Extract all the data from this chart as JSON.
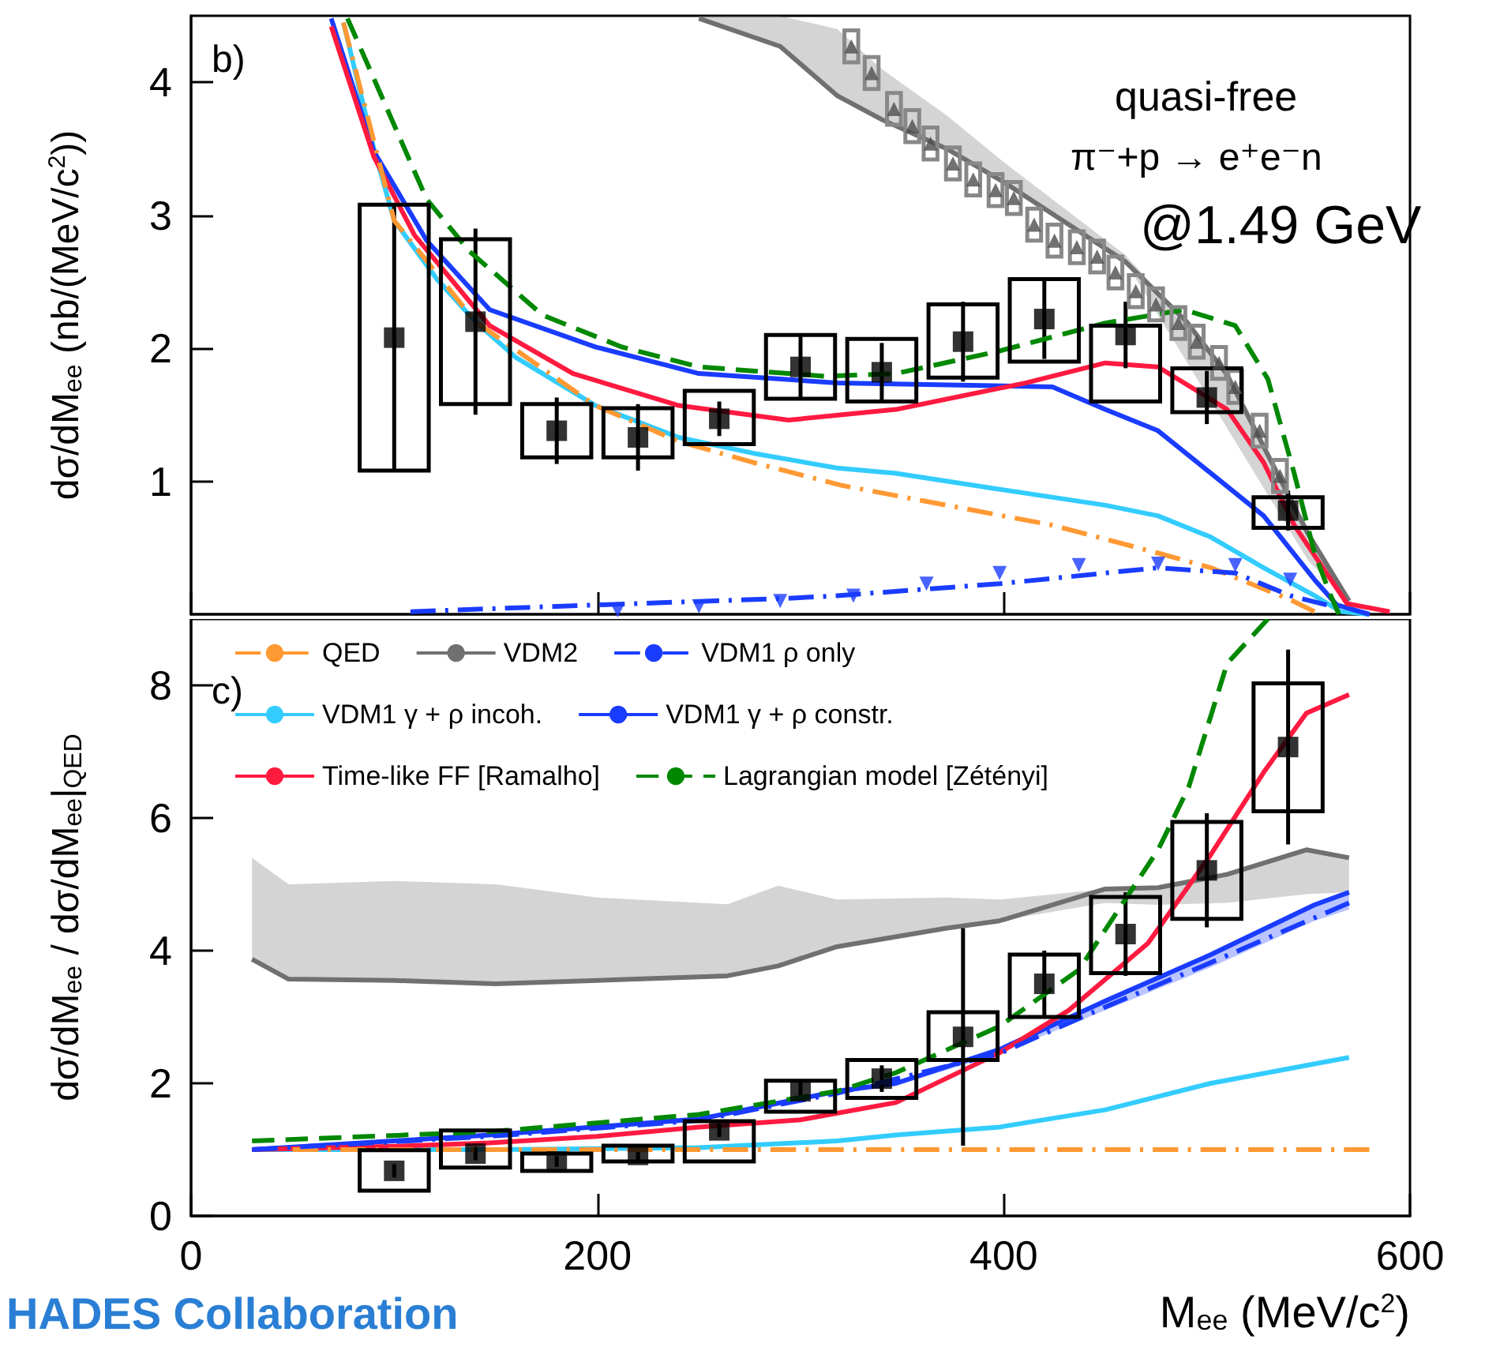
{
  "chart_data": [
    {
      "type": "line",
      "xlim": [
        0,
        600
      ],
      "xticks": [
        0,
        200,
        400,
        600
      ],
      "ylim": [
        0,
        4.5
      ],
      "yticks": [
        1,
        2,
        3,
        4
      ],
      "ylabel": "dσ/dM$_{ee}$ (nb/(MeV/c$^{2}$))",
      "tick_labels": "y",
      "grid": false,
      "legend": false,
      "annotations": [
        "b)",
        "quasi-free",
        "π⁻+p → e⁺e⁻n",
        "@1.49 GeV"
      ],
      "series": [
        {
          "color": "#707070",
          "line_style": "solid",
          "marker": "none",
          "x": [
            250,
            290,
            318,
            340,
            372,
            400,
            430,
            460,
            490,
            510,
            530,
            550,
            570
          ],
          "values": [
            4.48,
            4.27,
            3.9,
            3.72,
            3.5,
            3.25,
            2.95,
            2.65,
            2.2,
            1.8,
            1.2,
            0.6,
            0.1
          ],
          "lower": [
            4.48,
            4.27,
            3.9,
            3.72,
            3.5,
            3.25,
            2.95,
            2.65,
            1.9,
            1.4,
            0.9,
            0.4,
            0.1
          ],
          "upper": [
            4.5,
            4.5,
            4.4,
            4.1,
            3.75,
            3.4,
            3.05,
            2.7,
            2.2,
            1.8,
            1.2,
            0.6,
            0.1
          ]
        },
        {
          "color": "#ff9933",
          "line_style": "dashdot",
          "marker": "none",
          "x": [
            75,
            100,
            140,
            199,
            240,
            277,
            320,
            372,
            424,
            476,
            502,
            541,
            553
          ],
          "values": [
            4.45,
            2.96,
            2.2,
            1.57,
            1.3,
            1.14,
            0.97,
            0.82,
            0.67,
            0.46,
            0.35,
            0.11,
            0.02
          ]
        },
        {
          "color": "#1a3cff",
          "line_style": "dashdot",
          "marker": "none",
          "x": [
            108,
            199,
            294,
            318,
            398,
            476,
            514,
            541,
            559
          ],
          "values": [
            0.02,
            0.07,
            0.12,
            0.14,
            0.23,
            0.35,
            0.31,
            0.14,
            0.07
          ]
        },
        {
          "color": "#33ccff",
          "line_style": "solid",
          "marker": "none",
          "x": [
            75,
            90,
            100,
            121,
            140,
            160,
            199,
            240,
            277,
            318,
            347,
            398,
            450,
            476,
            502,
            528,
            553,
            566,
            580
          ],
          "values": [
            4.45,
            3.5,
            2.96,
            2.52,
            2.2,
            1.93,
            1.57,
            1.33,
            1.21,
            1.1,
            1.06,
            0.94,
            0.82,
            0.74,
            0.58,
            0.35,
            0.14,
            0.02,
            0
          ]
        },
        {
          "color": "#1a3cff",
          "line_style": "solid",
          "marker": "none",
          "x": [
            69,
            90,
            116,
            147,
            199,
            250,
            318,
            424,
            450,
            476,
            502,
            528,
            553,
            564,
            580
          ],
          "values": [
            4.48,
            3.48,
            2.81,
            2.29,
            2.01,
            1.81,
            1.74,
            1.71,
            1.54,
            1.38,
            1.06,
            0.74,
            0.26,
            0.07,
            0
          ]
        },
        {
          "color": "#ff1a40",
          "line_style": "solid",
          "marker": "none",
          "x": [
            69,
            90,
            110,
            147,
            188,
            240,
            294,
            347,
            411,
            450,
            476,
            510,
            528,
            543,
            569,
            590
          ],
          "values": [
            4.42,
            3.44,
            2.85,
            2.17,
            1.81,
            1.57,
            1.46,
            1.54,
            1.74,
            1.89,
            1.86,
            1.54,
            1.14,
            0.67,
            0.08,
            0.02
          ]
        },
        {
          "color": "#008800",
          "line_style": "dashed",
          "marker": "none",
          "x": [
            77,
            116,
            137,
            173,
            212,
            250,
            312,
            347,
            398,
            450,
            489,
            514,
            530,
            543,
            553,
            561,
            565
          ],
          "values": [
            4.48,
            3.12,
            2.73,
            2.25,
            2.01,
            1.86,
            1.79,
            1.81,
            1.98,
            2.19,
            2.29,
            2.17,
            1.77,
            1.06,
            0.46,
            0.14,
            0
          ]
        },
        {
          "type": "bar",
          "color": "#888888",
          "x": [
            325,
            335,
            346,
            355,
            364,
            375,
            385,
            396,
            405,
            415,
            425,
            436,
            446,
            455,
            465,
            475,
            486,
            495,
            506,
            514,
            526,
            536
          ],
          "base": [
            4.15,
            3.95,
            3.68,
            3.55,
            3.42,
            3.27,
            3.15,
            3.07,
            3.01,
            2.81,
            2.69,
            2.64,
            2.57,
            2.45,
            2.31,
            2.21,
            2.07,
            1.93,
            1.77,
            1.59,
            1.26,
            0.92
          ],
          "values": [
            0.24,
            0.24,
            0.24,
            0.24,
            0.24,
            0.24,
            0.24,
            0.24,
            0.24,
            0.24,
            0.24,
            0.24,
            0.24,
            0.24,
            0.24,
            0.24,
            0.24,
            0.24,
            0.24,
            0.24,
            0.24,
            0.24
          ]
        },
        {
          "type": "scatter",
          "color": "#4d4d4d",
          "marker": "triangle",
          "x": [
            325,
            335,
            346,
            355,
            364,
            375,
            385,
            396,
            405,
            415,
            425,
            436,
            446,
            455,
            465,
            475,
            486,
            495,
            506,
            514,
            526,
            536
          ],
          "values": [
            4.27,
            4.07,
            3.8,
            3.67,
            3.54,
            3.39,
            3.27,
            3.19,
            3.13,
            2.93,
            2.81,
            2.76,
            2.69,
            2.57,
            2.43,
            2.33,
            2.19,
            2.05,
            1.89,
            1.71,
            1.38,
            1.04
          ]
        },
        {
          "type": "scatter",
          "color": "#1a3cff",
          "marker": "triangle-down",
          "x": [
            210,
            250,
            290,
            326,
            362,
            398,
            437,
            476,
            514,
            541
          ],
          "values": [
            0.03,
            0.06,
            0.1,
            0.14,
            0.23,
            0.31,
            0.37,
            0.38,
            0.37,
            0.26
          ]
        },
        {
          "type": "bar",
          "color": "#000000",
          "x": [
            100,
            140,
            180,
            220,
            260,
            300,
            340,
            380,
            420,
            460,
            500,
            540
          ],
          "base": [
            1.08,
            1.58,
            1.18,
            1.18,
            1.28,
            1.62,
            1.6,
            1.78,
            1.9,
            1.6,
            1.52,
            0.65
          ],
          "values": [
            2.0,
            1.24,
            0.4,
            0.37,
            0.4,
            0.48,
            0.47,
            0.55,
            0.62,
            0.57,
            0.33,
            0.23
          ]
        },
        {
          "type": "scatter",
          "color": "#000000",
          "marker": "square",
          "x": [
            100,
            140,
            180,
            220,
            260,
            300,
            340,
            380,
            420,
            460,
            500,
            540
          ],
          "values": [
            2.08,
            2.2,
            1.38,
            1.33,
            1.47,
            1.86,
            1.82,
            2.05,
            2.22,
            2.1,
            1.63,
            0.78
          ],
          "errors": [
            1.0,
            0.7,
            0.25,
            0.25,
            0.13,
            0.25,
            0.22,
            0.3,
            0.3,
            0.25,
            0.2,
            0.15
          ]
        }
      ]
    },
    {
      "type": "line",
      "xlim": [
        0,
        600
      ],
      "xticks": [
        0,
        200,
        400,
        600
      ],
      "ylim": [
        0,
        9
      ],
      "yticks": [
        0,
        2,
        4,
        6,
        8
      ],
      "xlabel": "M$_{ee}$ (MeV/c$^{2}$)",
      "ylabel": "dσ/dM$_{ee}$ / dσ/dM$_{ee}$|$_{QED}$",
      "grid": false,
      "legend": "top left",
      "annotations": [
        "c)",
        "HADES Collaboration"
      ],
      "series": [
        {
          "name": "QED",
          "color": "#ff9933",
          "line_style": "dashdot",
          "marker": "none",
          "x": [
            50,
            580
          ],
          "values": [
            1,
            1
          ]
        },
        {
          "name": "VDM2",
          "color": "#707070",
          "line_style": "solid",
          "marker": "none",
          "x": [
            30,
            48,
            100,
            150,
            200,
            264,
            289,
            318,
            372,
            398,
            450,
            476,
            510,
            549,
            570
          ],
          "values": [
            3.87,
            3.57,
            3.55,
            3.5,
            3.55,
            3.62,
            3.77,
            4.06,
            4.34,
            4.45,
            4.93,
            4.95,
            5.15,
            5.52,
            5.4
          ],
          "lower": [
            3.87,
            3.57,
            3.55,
            3.5,
            3.55,
            3.62,
            3.77,
            4.06,
            4.34,
            4.45,
            4.72,
            4.69,
            4.72,
            4.85,
            4.88
          ],
          "upper": [
            5.4,
            5.0,
            5.05,
            5.0,
            4.8,
            4.7,
            4.98,
            4.77,
            4.8,
            4.77,
            4.93,
            4.95,
            5.15,
            5.52,
            5.4
          ]
        },
        {
          "name": "VDM1 ρ only",
          "color": "#1a3cff",
          "line_style": "dashdot",
          "marker": "none",
          "x": [
            30,
            147,
            250,
            318,
            398,
            450,
            502,
            570
          ],
          "values": [
            1.0,
            1.2,
            1.44,
            1.85,
            2.45,
            3.15,
            3.82,
            4.72
          ]
        },
        {
          "name": "VDM1 γ + ρ incoh.",
          "color": "#33ccff",
          "line_style": "solid",
          "marker": "none",
          "x": [
            30,
            150,
            250,
            318,
            347,
            398,
            450,
            502,
            570
          ],
          "values": [
            1.0,
            1.0,
            1.03,
            1.13,
            1.22,
            1.34,
            1.6,
            2.0,
            2.39
          ]
        },
        {
          "name": "VDM1 γ + ρ constr.",
          "color": "#1a3cff",
          "line_style": "solid",
          "marker": "none",
          "x": [
            30,
            147,
            250,
            318,
            347,
            398,
            450,
            502,
            553,
            570
          ],
          "values": [
            1.0,
            1.22,
            1.46,
            1.88,
            2.0,
            2.51,
            3.24,
            3.94,
            4.69,
            4.88
          ],
          "lower": [
            1.0,
            1.2,
            1.43,
            1.84,
            1.96,
            2.45,
            3.1,
            3.75,
            4.45,
            4.62
          ],
          "upper": [
            1.0,
            1.22,
            1.46,
            1.88,
            2.0,
            2.51,
            3.24,
            3.94,
            4.69,
            4.88
          ]
        },
        {
          "name": "Time-like FF [Ramalho]",
          "color": "#ff1a40",
          "line_style": "solid",
          "marker": "none",
          "x": [
            30,
            100,
            147,
            200,
            250,
            300,
            347,
            398,
            432,
            471,
            502,
            528,
            549,
            570
          ],
          "values": [
            1.0,
            1.05,
            1.1,
            1.2,
            1.34,
            1.45,
            1.71,
            2.46,
            3.1,
            4.11,
            5.45,
            6.69,
            7.58,
            7.86
          ]
        },
        {
          "name": "Lagrangian model [Zétényi]",
          "color": "#008800",
          "line_style": "dashed",
          "marker": "none",
          "x": [
            30,
            147,
            250,
            318,
            347,
            398,
            437,
            476,
            491,
            510,
            530
          ],
          "values": [
            1.13,
            1.27,
            1.53,
            1.88,
            2.16,
            2.86,
            3.71,
            5.52,
            6.46,
            8.33,
            9.0
          ]
        },
        {
          "type": "bar",
          "color": "#000000",
          "x": [
            100,
            140,
            180,
            220,
            260,
            300,
            340,
            380,
            420,
            460,
            500,
            540
          ],
          "base": [
            0.38,
            0.73,
            0.68,
            0.82,
            0.82,
            1.57,
            1.78,
            2.35,
            3.0,
            3.66,
            4.48,
            6.1
          ],
          "values": [
            0.61,
            0.56,
            0.26,
            0.24,
            0.61,
            0.47,
            0.57,
            0.72,
            0.94,
            1.15,
            1.46,
            1.93
          ]
        },
        {
          "type": "scatter",
          "color": "#000000",
          "marker": "square",
          "x": [
            100,
            140,
            180,
            220,
            260,
            300,
            340,
            380,
            420,
            460,
            500,
            540
          ],
          "values": [
            0.68,
            0.94,
            0.82,
            0.92,
            1.29,
            1.88,
            2.07,
            2.7,
            3.5,
            4.25,
            5.21,
            7.07
          ],
          "errors": [
            0.1,
            0.1,
            0.08,
            0.08,
            0.1,
            0.15,
            0.2,
            1.64,
            0.5,
            0.63,
            0.86,
            1.47
          ]
        }
      ]
    }
  ]
}
